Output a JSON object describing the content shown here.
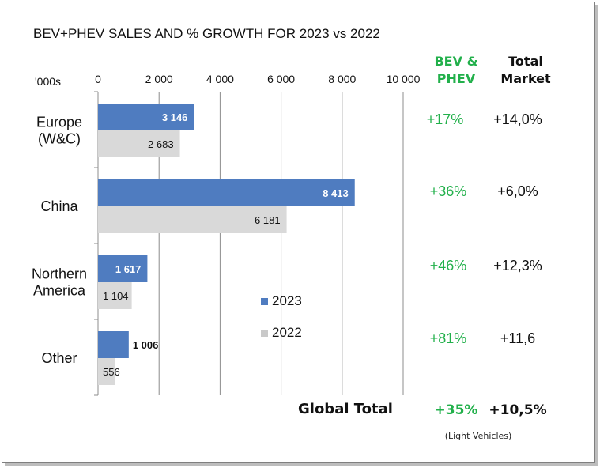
{
  "colors": {
    "series_2023": "#4f7cc0",
    "series_2022": "#d9d9d9",
    "growth_green": "#22b04b",
    "grid": "#8c8c8c"
  },
  "chart_data": {
    "type": "bar",
    "orientation": "horizontal",
    "title": "BEV+PHEV SALES AND % GROWTH FOR 2023 vs 2022",
    "unit_label": "'000s",
    "xlim": [
      0,
      10000
    ],
    "x_ticks": [
      "0",
      "2 000",
      "4 000",
      "6 000",
      "8 000",
      "10 000"
    ],
    "x_tick_values": [
      0,
      2000,
      4000,
      6000,
      8000,
      10000
    ],
    "grid": true,
    "legend_position": "center",
    "categories": [
      "Europe\n(W&C)",
      "China",
      "Northern\nAmerica",
      "Other"
    ],
    "series": [
      {
        "name": "2023",
        "values": [
          3146,
          8413,
          1617,
          1006
        ],
        "labels": [
          "3 146",
          "8 413",
          "1 617",
          "1 006"
        ]
      },
      {
        "name": "2022",
        "values": [
          2683,
          6181,
          1104,
          556
        ],
        "labels": [
          "2 683",
          "6 181",
          "1 104",
          "556"
        ]
      }
    ]
  },
  "table": {
    "bev_header": "BEV &\nPHEV",
    "total_header": "Total\nMarket",
    "rows": [
      {
        "bev": "+17%",
        "total": "+14,0%"
      },
      {
        "bev": "+36%",
        "total": "+6,0%"
      },
      {
        "bev": "+46%",
        "total": "+12,3%"
      },
      {
        "bev": "+81%",
        "total": "+11,6"
      }
    ],
    "global_label": "Global Total",
    "global_bev": "+35%",
    "global_total": "+10,5%",
    "footnote": "(Light Vehicles)"
  }
}
